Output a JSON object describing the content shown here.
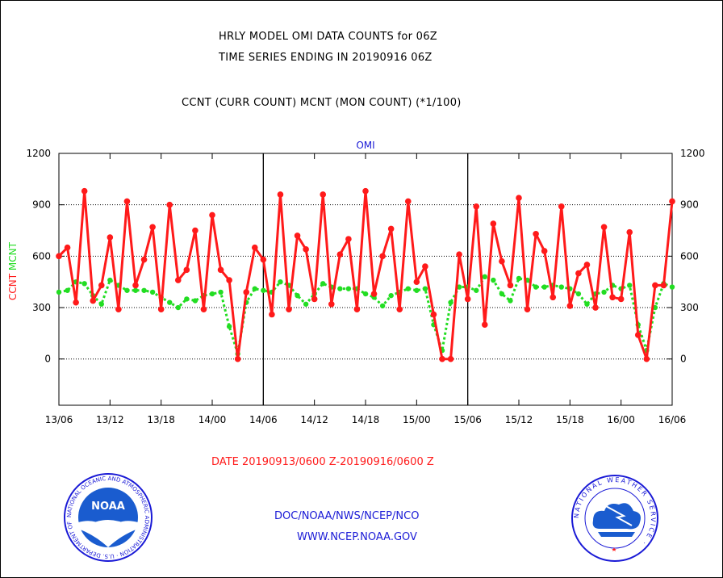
{
  "header": {
    "title_line1": "HRLY MODEL OMI DATA COUNTS for 06Z",
    "title_line2": "TIME SERIES ENDING IN 20190916 06Z",
    "subtitle": "CCNT (CURR COUNT) MCNT (MON COUNT) (*1/100)"
  },
  "footer": {
    "date_range": "DATE 20190913/0600 Z-20190916/0600 Z",
    "org_line": "DOC/NOAA/NWS/NCEP/NCO",
    "url_line": "WWW.NCEP.NOAA.GOV"
  },
  "logos": {
    "noaa_text": "NOAA",
    "noaa_ring_text": "NATIONAL OCEANIC AND ATMOSPHERIC ADMINISTRATION · U.S. DEPARTMENT OF COMMERCE ·",
    "nws_ring_text": "NATIONAL WEATHER SERVICE ·"
  },
  "colors": {
    "ccnt": "#ff1a1a",
    "mcnt": "#22dd22",
    "text_blue": "#1a1ad6",
    "grid": "#000000"
  },
  "chart_data": {
    "type": "line",
    "panel_label": "OMI",
    "ylabel_left_ccnt": "CCNT",
    "ylabel_left_mcnt": "MCNT",
    "ylim": [
      -270,
      1200
    ],
    "yticks": [
      0,
      300,
      600,
      900,
      1200
    ],
    "xlim": [
      0,
      72
    ],
    "xtick_labels": [
      "13/06",
      "13/12",
      "13/18",
      "14/00",
      "14/06",
      "14/12",
      "14/18",
      "15/00",
      "15/06",
      "15/12",
      "15/18",
      "16/00",
      "16/06"
    ],
    "grid": true,
    "series": [
      {
        "name": "CCNT",
        "color": "#ff1a1a",
        "values": [
          600,
          650,
          330,
          980,
          340,
          430,
          710,
          290,
          920,
          430,
          580,
          770,
          290,
          900,
          460,
          520,
          750,
          290,
          840,
          520,
          460,
          0,
          390,
          650,
          580,
          260,
          960,
          290,
          720,
          640,
          350,
          960,
          320,
          610,
          700,
          290,
          980,
          380,
          600,
          760,
          290,
          920,
          450,
          540,
          260,
          0,
          0,
          610,
          350,
          890,
          200,
          790,
          570,
          430,
          940,
          290,
          730,
          630,
          360,
          890,
          310,
          500,
          550,
          300,
          770,
          360,
          350,
          740,
          140,
          0,
          430,
          430,
          920
        ]
      },
      {
        "name": "MCNT",
        "color": "#22dd22",
        "values": [
          390,
          400,
          450,
          440,
          370,
          320,
          460,
          430,
          400,
          400,
          400,
          390,
          360,
          330,
          300,
          350,
          340,
          370,
          380,
          390,
          190,
          30,
          330,
          410,
          400,
          390,
          450,
          430,
          370,
          320,
          380,
          440,
          420,
          410,
          410,
          410,
          380,
          360,
          310,
          370,
          390,
          410,
          400,
          410,
          200,
          50,
          330,
          420,
          420,
          400,
          480,
          460,
          380,
          340,
          470,
          460,
          420,
          420,
          430,
          420,
          410,
          380,
          320,
          380,
          390,
          430,
          410,
          430,
          200,
          50,
          300,
          440,
          420
        ]
      }
    ]
  }
}
